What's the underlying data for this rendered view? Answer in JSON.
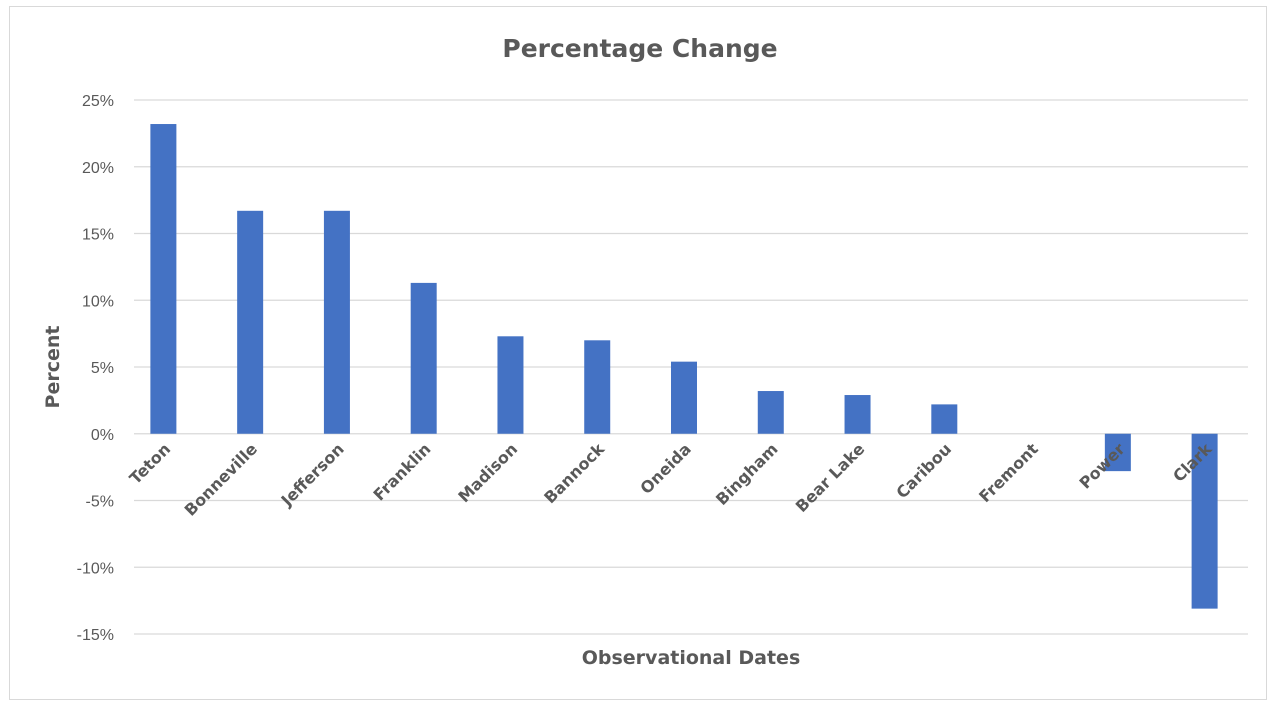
{
  "chart_data": {
    "type": "bar",
    "title": "Percentage Change",
    "xlabel": "Observational Dates",
    "ylabel": "Percent",
    "categories": [
      "Teton",
      "Bonneville",
      "Jefferson",
      "Franklin",
      "Madison",
      "Bannock",
      "Oneida",
      "Bingham",
      "Bear Lake",
      "Caribou",
      "Fremont",
      "Power",
      "Clark"
    ],
    "values": [
      23.2,
      16.7,
      16.7,
      11.3,
      7.3,
      7.0,
      5.4,
      3.2,
      2.9,
      2.2,
      0.0,
      -2.8,
      -13.1
    ],
    "ylim": [
      -15,
      25
    ],
    "yticks": [
      25,
      20,
      15,
      10,
      5,
      0,
      -5,
      -10,
      -15
    ],
    "ytick_labels": [
      "25%",
      "20%",
      "15%",
      "10%",
      "5%",
      "0%",
      "-5%",
      "-10%",
      "-15%"
    ],
    "grid": true,
    "legend": "none",
    "bar_color": "#4472c4",
    "grid_color": "#d9d9d9",
    "text_color": "#595959"
  }
}
